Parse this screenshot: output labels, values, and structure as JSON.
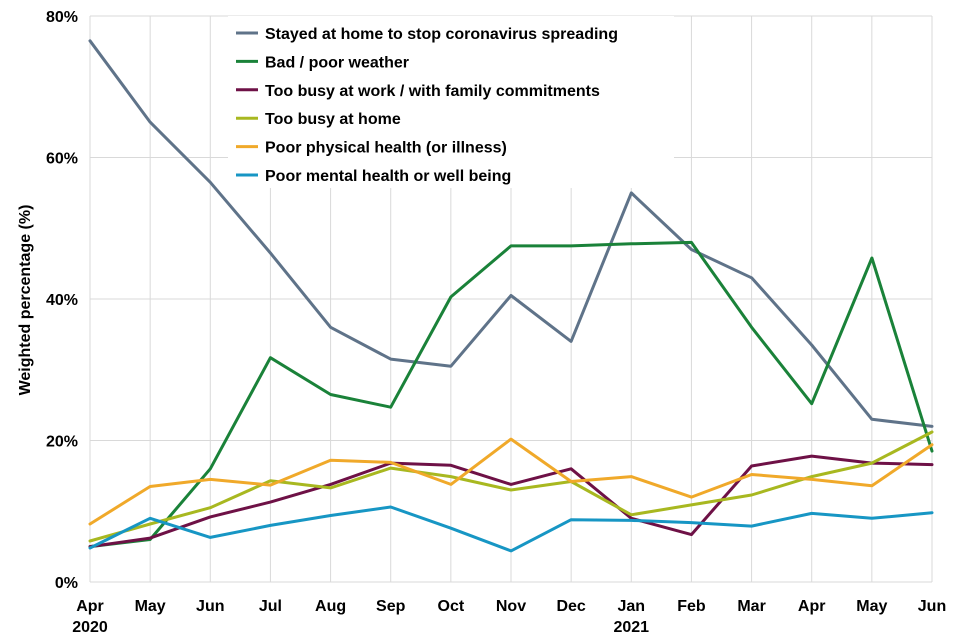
{
  "chart_data": {
    "type": "line",
    "title": "",
    "xlabel": "",
    "ylabel": "Weighted percentage (%)",
    "ylim": [
      0,
      80
    ],
    "yticks": [
      0,
      20,
      40,
      60,
      80
    ],
    "ytick_labels": [
      "0%",
      "20%",
      "40%",
      "60%",
      "80%"
    ],
    "grid": true,
    "legend_position": "top-center",
    "categories": [
      "Apr",
      "May",
      "Jun",
      "Jul",
      "Aug",
      "Sep",
      "Oct",
      "Nov",
      "Dec",
      "Jan",
      "Feb",
      "Mar",
      "Apr",
      "May",
      "Jun"
    ],
    "year_labels": [
      {
        "index": 0,
        "label": "2020"
      },
      {
        "index": 9,
        "label": "2021"
      }
    ],
    "series": [
      {
        "name": "Stayed at home to stop coronavirus spreading",
        "color": "#5f7389",
        "values": [
          76.5,
          65,
          56.5,
          46.5,
          36,
          31.5,
          30.5,
          40.5,
          34,
          55,
          47,
          43,
          33.5,
          23,
          22
        ]
      },
      {
        "name": "Bad / poor weather",
        "color": "#1a8239",
        "values": [
          5,
          6,
          16,
          31.7,
          26.5,
          24.7,
          40.3,
          47.5,
          47.5,
          47.8,
          48,
          36,
          25.2,
          45.8,
          18.5
        ]
      },
      {
        "name": "Too busy at work / with family commitments",
        "color": "#6e1146",
        "values": [
          5,
          6.2,
          9.2,
          11.3,
          13.8,
          16.8,
          16.5,
          13.8,
          16,
          9,
          6.7,
          16.4,
          17.8,
          16.8,
          16.6
        ]
      },
      {
        "name": "Too busy at home",
        "color": "#a8b820",
        "values": [
          5.8,
          8.2,
          10.5,
          14.3,
          13.3,
          16.1,
          14.9,
          13,
          14.2,
          9.5,
          10.9,
          12.3,
          14.9,
          16.8,
          21.2
        ]
      },
      {
        "name": "Poor physical health (or illness)",
        "color": "#f0a92a",
        "values": [
          8.2,
          13.5,
          14.5,
          13.7,
          17.2,
          16.9,
          13.8,
          20.2,
          14.2,
          14.9,
          12,
          15.2,
          14.5,
          13.6,
          19.4
        ]
      },
      {
        "name": "Poor mental health or well being",
        "color": "#1796c4",
        "values": [
          4.8,
          9,
          6.3,
          8,
          9.4,
          10.6,
          7.6,
          4.4,
          8.8,
          8.7,
          8.4,
          7.9,
          9.7,
          9,
          9.8
        ]
      }
    ]
  }
}
